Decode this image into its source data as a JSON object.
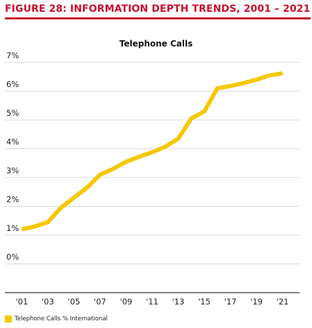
{
  "figure_title": "FIGURE 28: INFORMATION DEPTH TRENDS, 2001 – 2021",
  "colors": {
    "accent": "#c8102e",
    "series": "#f5c800",
    "grid": "#d9d9d9",
    "axis": "#333333"
  },
  "chart_data": {
    "type": "line",
    "title": "Telephone Calls",
    "xlabel": "",
    "ylabel": "",
    "x": [
      2001,
      2002,
      2003,
      2004,
      2005,
      2006,
      2007,
      2008,
      2009,
      2010,
      2011,
      2012,
      2013,
      2014,
      2015,
      2016,
      2017,
      2018,
      2019,
      2020,
      2021
    ],
    "x_tick_labels": [
      "'01",
      "'03",
      "'05",
      "'07",
      "'09",
      "'11",
      "'13",
      "'15",
      "'17",
      "'19",
      "'21"
    ],
    "x_tick_values": [
      2001,
      2003,
      2005,
      2007,
      2009,
      2011,
      2013,
      2015,
      2017,
      2019,
      2021
    ],
    "xlim": [
      1999.7,
      2022.3
    ],
    "y_tick_labels": [
      "7%",
      "6%",
      "5%",
      "4%",
      "3%",
      "2%",
      "1%",
      "0%"
    ],
    "y_tick_values": [
      7,
      6,
      5,
      4,
      3,
      2,
      1,
      0
    ],
    "ylim": [
      -1,
      7
    ],
    "grid": true,
    "legend_position": "bottom-left",
    "series": [
      {
        "name": "Telephone Calls % International",
        "values": [
          1.2,
          1.3,
          1.45,
          1.95,
          2.3,
          2.65,
          3.1,
          3.3,
          3.55,
          3.72,
          3.88,
          4.07,
          4.35,
          5.05,
          5.3,
          6.1,
          6.18,
          6.28,
          6.4,
          6.55,
          6.62
        ]
      }
    ]
  }
}
